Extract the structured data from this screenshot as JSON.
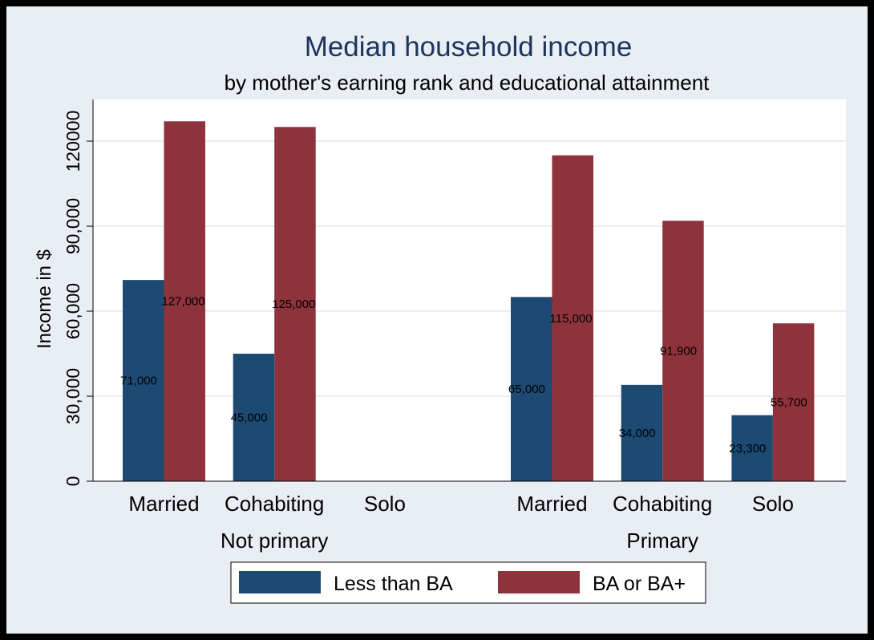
{
  "chart_data": {
    "type": "bar",
    "title": "Median household income",
    "subtitle": "by mother's earning rank and educational attainment",
    "ylabel": "Income in $",
    "ylim": [
      0,
      135000
    ],
    "yticks": [
      0,
      30000,
      60000,
      90000,
      120000
    ],
    "ytick_labels": [
      "0",
      "30,000",
      "60,000",
      "90,000",
      "120000"
    ],
    "grid": true,
    "legend_position": "bottom",
    "groups": [
      {
        "label": "Not primary",
        "categories": [
          {
            "label": "Married",
            "values": [
              71000,
              127000
            ],
            "value_labels": [
              "71,000",
              "127,000"
            ]
          },
          {
            "label": "Cohabiting",
            "values": [
              45000,
              125000
            ],
            "value_labels": [
              "45,000",
              "125,000"
            ]
          },
          {
            "label": "Solo",
            "values": [
              null,
              null
            ],
            "value_labels": [
              "",
              ""
            ]
          }
        ]
      },
      {
        "label": "Primary",
        "categories": [
          {
            "label": "Married",
            "values": [
              65000,
              115000
            ],
            "value_labels": [
              "65,000",
              "115,000"
            ]
          },
          {
            "label": "Cohabiting",
            "values": [
              34000,
              91900
            ],
            "value_labels": [
              "34,000",
              "91,900"
            ]
          },
          {
            "label": "Solo",
            "values": [
              23300,
              55700
            ],
            "value_labels": [
              "23,300",
              "55,700"
            ]
          }
        ]
      }
    ],
    "series": [
      {
        "name": "Less than BA",
        "color": "#1c4a72"
      },
      {
        "name": "BA or BA+",
        "color": "#8e333b"
      }
    ]
  },
  "colors": {
    "frame_background": "#e8eef3",
    "plot_background": "#ffffff",
    "title": "#1c355e",
    "grid": "#e8eef3"
  }
}
